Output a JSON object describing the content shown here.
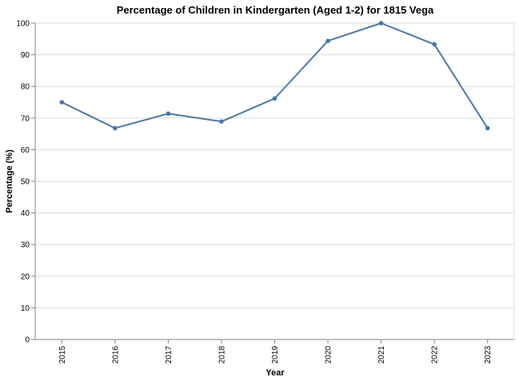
{
  "chart_data": {
    "type": "line",
    "title": "Percentage of Children in Kindergarten (Aged 1-2) for 1815 Vega",
    "xlabel": "Year",
    "ylabel": "Percentage (%)",
    "x": [
      "2015",
      "2016",
      "2017",
      "2018",
      "2019",
      "2020",
      "2021",
      "2022",
      "2023"
    ],
    "series": [
      {
        "values": [
          75.0,
          66.8,
          71.4,
          68.9,
          76.2,
          94.4,
          100.0,
          93.3,
          66.8
        ]
      }
    ],
    "ylim": [
      0,
      100
    ],
    "yticks": [
      "0",
      "10",
      "20",
      "30",
      "40",
      "50",
      "60",
      "70",
      "80",
      "90",
      "100"
    ],
    "grid": true,
    "legend": "none",
    "color": "#4c78a8"
  }
}
